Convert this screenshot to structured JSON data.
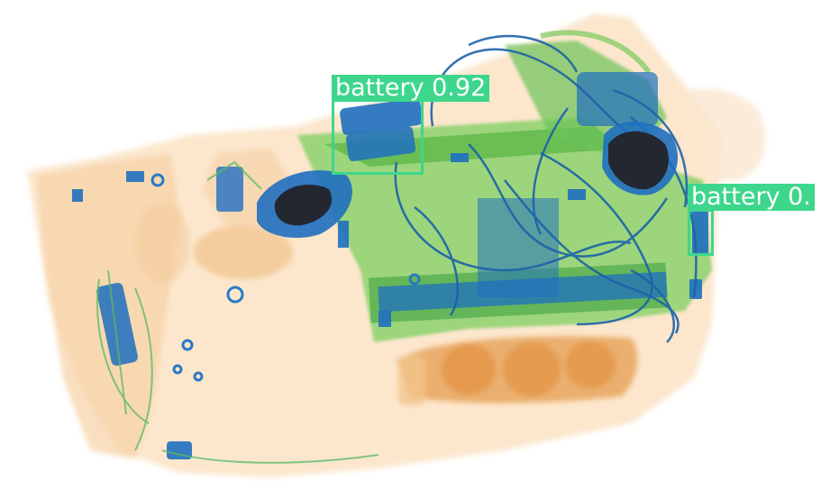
{
  "image": {
    "subject": "x-ray-baggage-scan",
    "colors": {
      "background": "#ffffff",
      "organic": "#f2b978",
      "organic_dark": "#e09a52",
      "mixed": "#6fc45a",
      "metal": "#1f6fc0",
      "dense": "#222730",
      "detection": "#3dd68c"
    }
  },
  "detections": [
    {
      "label": "battery 0.92"
    },
    {
      "label": "battery 0."
    }
  ]
}
